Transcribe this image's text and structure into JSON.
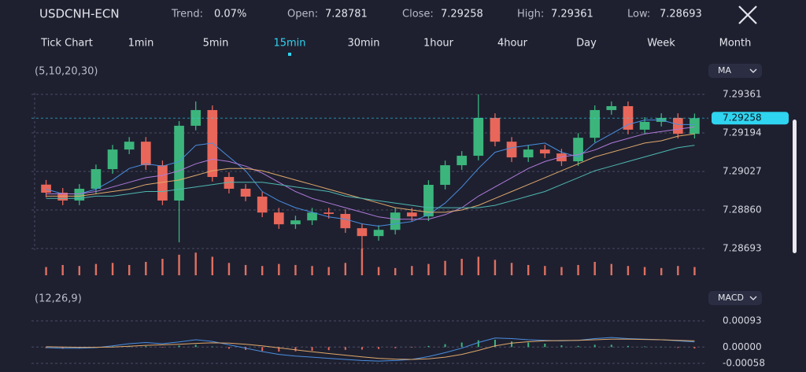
{
  "header": {
    "symbol": "USDCNH-ECN",
    "stats": [
      {
        "label": "Trend:",
        "value": "0.07%"
      },
      {
        "label": "Open:",
        "value": "7.28781"
      },
      {
        "label": "Close:",
        "value": "7.29258"
      },
      {
        "label": "High:",
        "value": "7.29361"
      },
      {
        "label": "Low:",
        "value": "7.28693"
      }
    ]
  },
  "tabs": {
    "items": [
      "Tick Chart",
      "1min",
      "5min",
      "15min",
      "30min",
      "1hour",
      "4hour",
      "Day",
      "Week",
      "Month"
    ],
    "active": 3
  },
  "chart_data": [
    {
      "type": "candlestick",
      "indicator_params": "(5,10,20,30)",
      "indicator_name": "MA",
      "up_color": "#3cb57c",
      "down_color": "#e8675a",
      "open": [
        7.2897,
        7.28935,
        7.28901,
        7.28952,
        7.29037,
        7.29122,
        7.29156,
        7.29054,
        7.28901,
        7.29225,
        7.29293,
        7.29003,
        7.28952,
        7.28918,
        7.28849,
        7.28798,
        7.28815,
        7.28849,
        7.28843,
        7.28781,
        7.28747,
        7.28774,
        7.28849,
        7.28832,
        7.28969,
        7.29054,
        7.29095,
        7.29259,
        7.29156,
        7.29088,
        7.29122,
        7.29105,
        7.29071,
        7.29173,
        7.29293,
        7.2931,
        7.29208,
        7.29242,
        7.29259,
        7.2919
      ],
      "high": [
        7.2899,
        7.28955,
        7.28972,
        7.29057,
        7.29142,
        7.29176,
        7.29176,
        7.29074,
        7.29245,
        7.2933,
        7.29313,
        7.29023,
        7.28972,
        7.28938,
        7.28869,
        7.28835,
        7.28869,
        7.28869,
        7.28863,
        7.28801,
        7.28794,
        7.28869,
        7.28869,
        7.28989,
        7.29074,
        7.29115,
        7.29361,
        7.29279,
        7.29176,
        7.29142,
        7.29142,
        7.29125,
        7.29193,
        7.29313,
        7.2933,
        7.2933,
        7.29262,
        7.29279,
        7.29279,
        7.29278
      ],
      "low": [
        7.28915,
        7.28881,
        7.28881,
        7.28932,
        7.29017,
        7.29102,
        7.29034,
        7.28881,
        7.2872,
        7.29205,
        7.28983,
        7.28932,
        7.28898,
        7.28829,
        7.28778,
        7.28778,
        7.28795,
        7.28823,
        7.28761,
        7.28693,
        7.28727,
        7.28754,
        7.28812,
        7.28812,
        7.28949,
        7.29034,
        7.29075,
        7.29136,
        7.29068,
        7.29068,
        7.29085,
        7.29051,
        7.29051,
        7.29153,
        7.29273,
        7.29188,
        7.29188,
        7.29222,
        7.2917,
        7.2917
      ],
      "close": [
        7.28935,
        7.28901,
        7.28952,
        7.29037,
        7.29122,
        7.29156,
        7.29054,
        7.28901,
        7.29225,
        7.29293,
        7.29003,
        7.28952,
        7.28918,
        7.28849,
        7.28798,
        7.28815,
        7.28849,
        7.28843,
        7.28781,
        7.28747,
        7.28774,
        7.28849,
        7.28832,
        7.28969,
        7.29054,
        7.29095,
        7.29259,
        7.29156,
        7.29088,
        7.29122,
        7.29105,
        7.29071,
        7.29173,
        7.29293,
        7.2931,
        7.29208,
        7.29242,
        7.29259,
        7.2919,
        7.29258
      ],
      "series": [
        {
          "color": "#4a8fe0",
          "values": [
            7.2895,
            7.2893,
            7.2893,
            7.2895,
            7.2899,
            7.2904,
            7.2906,
            7.2905,
            7.2907,
            7.2914,
            7.2915,
            7.2909,
            7.2903,
            7.2894,
            7.289,
            7.2887,
            7.2885,
            7.2883,
            7.2882,
            7.288,
            7.2879,
            7.288,
            7.2881,
            7.2884,
            7.2889,
            7.2896,
            7.2904,
            7.2911,
            7.2913,
            7.2914,
            7.2915,
            7.2911,
            7.2909,
            7.2915,
            7.2919,
            7.2923,
            7.2925,
            7.2925,
            7.2923,
            7.2923
          ]
        },
        {
          "color": "#b07ad8",
          "values": [
            7.2893,
            7.2893,
            7.2893,
            7.2894,
            7.2896,
            7.2898,
            7.29,
            7.2901,
            7.2903,
            7.2906,
            7.2908,
            7.2907,
            7.2905,
            7.2902,
            7.2898,
            7.2894,
            7.2891,
            7.2889,
            7.2887,
            7.2885,
            7.2883,
            7.2882,
            7.2882,
            7.2882,
            7.2884,
            7.2887,
            7.2892,
            7.2896,
            7.29,
            7.2904,
            7.2907,
            7.2909,
            7.291,
            7.2912,
            7.2915,
            7.2917,
            7.2919,
            7.292,
            7.2921,
            7.2922
          ]
        },
        {
          "color": "#e0a86a",
          "values": [
            7.2892,
            7.2892,
            7.2892,
            7.2893,
            7.2894,
            7.2895,
            7.2897,
            7.2898,
            7.2899,
            7.2901,
            7.2903,
            7.2904,
            7.2904,
            7.2903,
            7.2901,
            7.2899,
            7.2897,
            7.2895,
            7.2893,
            7.2891,
            7.2889,
            7.2887,
            7.2886,
            7.2885,
            7.2885,
            7.2886,
            7.2888,
            7.2891,
            7.2894,
            7.2897,
            7.29,
            7.2903,
            7.2906,
            7.2909,
            7.2911,
            7.2913,
            7.2915,
            7.2916,
            7.2918,
            7.2919
          ]
        },
        {
          "color": "#4fb8b0",
          "values": [
            7.2891,
            7.2891,
            7.2891,
            7.2892,
            7.2892,
            7.2893,
            7.2894,
            7.2894,
            7.2895,
            7.2896,
            7.2897,
            7.2898,
            7.2898,
            7.2898,
            7.2897,
            7.2896,
            7.2895,
            7.2894,
            7.2892,
            7.2891,
            7.289,
            7.2889,
            7.2888,
            7.2887,
            7.2887,
            7.2887,
            7.2887,
            7.2888,
            7.289,
            7.2892,
            7.2894,
            7.2897,
            7.29,
            7.2903,
            7.2905,
            7.2907,
            7.2909,
            7.2911,
            7.2913,
            7.2914
          ]
        }
      ],
      "volume": {
        "color": "#e0705f",
        "values": [
          8,
          10,
          9,
          11,
          12,
          10,
          13,
          16,
          20,
          22,
          18,
          12,
          10,
          9,
          11,
          10,
          9,
          8,
          12,
          26,
          8,
          7,
          9,
          11,
          14,
          16,
          18,
          15,
          12,
          10,
          9,
          8,
          10,
          13,
          11,
          9,
          8,
          7,
          9,
          8
        ]
      },
      "ylim": [
        7.28693,
        7.29361
      ],
      "yticks": [
        7.29361,
        7.29194,
        7.29027,
        {
          "value": 7.2886,
          "label": "7.28860"
        },
        7.28693
      ],
      "last_price": 7.29258,
      "last_price_color": "#2fd4f0",
      "grid": true
    },
    {
      "type": "macd",
      "indicator_params": "(12,26,9)",
      "indicator_name": "MACD",
      "histogram": {
        "up_color": "#3cb57c",
        "down_color": "#e8675a",
        "values": [
          -4e-05,
          -6e-05,
          -5e-05,
          -2e-05,
          2e-05,
          4e-05,
          3e-05,
          -2e-05,
          5e-05,
          8e-05,
          2e-05,
          -6e-05,
          -0.0001,
          -0.00014,
          -0.00016,
          -0.00015,
          -0.00013,
          -0.00011,
          -0.0001,
          -9e-05,
          -7e-05,
          -4e-05,
          -2e-05,
          4e-05,
          0.0001,
          0.00016,
          0.00024,
          0.00026,
          0.0002,
          0.00016,
          0.00012,
          6e-05,
          4e-05,
          8e-05,
          8e-05,
          4e-05,
          2e-05,
          1e-05,
          -3e-05,
          -5e-05
        ]
      },
      "series": [
        {
          "color": "#4a8fe0",
          "values": [
            -2e-05,
            -4e-05,
            -4e-05,
            -2e-05,
            4e-05,
            0.00012,
            0.00016,
            0.00012,
            0.00018,
            0.00026,
            0.0002,
            8e-05,
            -4e-05,
            -0.00016,
            -0.00026,
            -0.00032,
            -0.00036,
            -0.0004,
            -0.00044,
            -0.00048,
            -0.0005,
            -0.00048,
            -0.00044,
            -0.00034,
            -0.0002,
            -4e-05,
            0.00016,
            0.00032,
            0.0003,
            0.00026,
            0.00024,
            0.00022,
            0.00024,
            0.0003,
            0.00034,
            0.0003,
            0.00028,
            0.00026,
            0.00022,
            0.00018
          ]
        },
        {
          "color": "#e0a86a",
          "values": [
            1e-05,
            0,
            -1e-05,
            -1e-05,
            0,
            3e-05,
            6e-05,
            8e-05,
            0.0001,
            0.00013,
            0.00015,
            0.00014,
            0.0001,
            4e-05,
            -3e-05,
            -0.0001,
            -0.00017,
            -0.00023,
            -0.00029,
            -0.00035,
            -0.0004,
            -0.00043,
            -0.00044,
            -0.00042,
            -0.00036,
            -0.00026,
            -0.00012,
            4e-05,
            0.00014,
            0.00019,
            0.00022,
            0.00023,
            0.00024,
            0.00026,
            0.00028,
            0.00028,
            0.00027,
            0.00026,
            0.00024,
            0.00022
          ]
        }
      ],
      "ylim": [
        -0.00058,
        0.00093
      ],
      "yticks": [
        0.00093,
        {
          "value": 0,
          "label": "0.00000"
        },
        -0.00058
      ],
      "grid": true
    }
  ]
}
